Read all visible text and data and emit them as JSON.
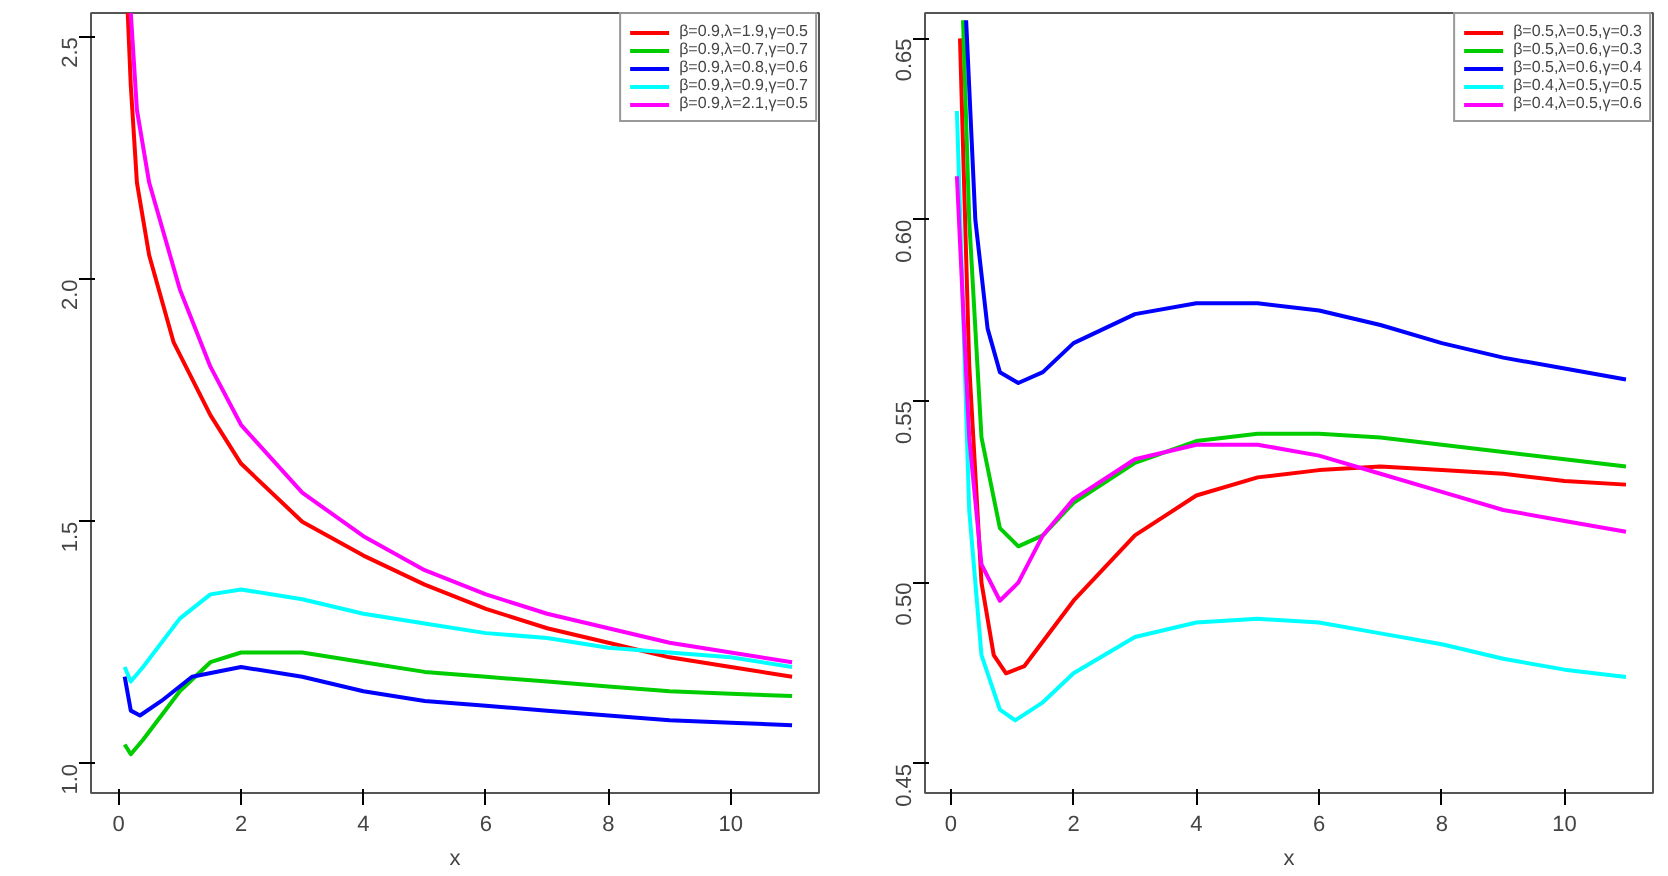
{
  "chart_data": [
    {
      "type": "line",
      "xlabel": "x",
      "xlim": [
        -0.45,
        11.44
      ],
      "ylim": [
        0.94,
        2.55
      ],
      "xticks": [
        0,
        2,
        4,
        6,
        8,
        10
      ],
      "yticks": [
        {
          "value": 1.0,
          "label": "1.0"
        },
        1.5,
        {
          "value": 2.0,
          "label": "2.0"
        },
        2.5
      ],
      "grid": false,
      "legend": "top right",
      "line_style": "solid",
      "marker": "none",
      "series": [
        {
          "name": "β=0.9,λ=1.9,γ=0.5",
          "color": "#ff0000",
          "x": [
            0.15,
            0.2,
            0.3,
            0.5,
            0.9,
            1.5,
            2,
            3,
            4,
            5,
            6,
            7,
            8,
            9,
            10,
            11
          ],
          "values": [
            2.55,
            2.4,
            2.2,
            2.05,
            1.87,
            1.72,
            1.62,
            1.5,
            1.43,
            1.37,
            1.32,
            1.28,
            1.25,
            1.22,
            1.2,
            1.18
          ]
        },
        {
          "name": "β=0.9,λ=0.7,γ=0.7",
          "color": "#00cd00",
          "x": [
            0.1,
            0.2,
            0.4,
            1,
            1.5,
            2,
            3,
            4,
            5,
            6,
            7,
            8,
            9,
            10,
            11
          ],
          "values": [
            1.04,
            1.02,
            1.05,
            1.15,
            1.21,
            1.23,
            1.23,
            1.21,
            1.19,
            1.18,
            1.17,
            1.16,
            1.15,
            1.145,
            1.14
          ]
        },
        {
          "name": "β=0.9,λ=0.8,γ=0.6",
          "color": "#0000ff",
          "x": [
            0.1,
            0.2,
            0.35,
            0.7,
            1.2,
            2,
            3,
            4,
            5,
            6,
            7,
            8,
            9,
            10,
            11
          ],
          "values": [
            1.18,
            1.11,
            1.1,
            1.13,
            1.18,
            1.2,
            1.18,
            1.15,
            1.13,
            1.12,
            1.11,
            1.1,
            1.09,
            1.085,
            1.08
          ]
        },
        {
          "name": "β=0.9,λ=0.9,γ=0.7",
          "color": "#00ffff",
          "x": [
            0.1,
            0.2,
            0.4,
            1,
            1.5,
            2,
            3,
            4,
            5,
            6,
            7,
            8,
            9,
            10,
            11
          ],
          "values": [
            1.2,
            1.17,
            1.2,
            1.3,
            1.35,
            1.36,
            1.34,
            1.31,
            1.29,
            1.27,
            1.26,
            1.24,
            1.23,
            1.22,
            1.2
          ]
        },
        {
          "name": "β=0.9,λ=2.1,γ=0.5",
          "color": "#ff00ff",
          "x": [
            0.2,
            0.3,
            0.5,
            1,
            1.5,
            2,
            3,
            4,
            5,
            6,
            7,
            8,
            9,
            10,
            11
          ],
          "values": [
            2.55,
            2.35,
            2.2,
            1.98,
            1.82,
            1.7,
            1.56,
            1.47,
            1.4,
            1.35,
            1.31,
            1.28,
            1.25,
            1.23,
            1.21
          ]
        }
      ]
    },
    {
      "type": "line",
      "xlabel": "x",
      "xlim": [
        -0.42,
        11.44
      ],
      "ylim": [
        0.442,
        0.657
      ],
      "xticks": [
        0,
        2,
        4,
        6,
        8,
        10
      ],
      "yticks": [
        0.45,
        {
          "value": 0.5,
          "label": "0.50"
        },
        0.55,
        {
          "value": 0.6,
          "label": "0.60"
        },
        0.65
      ],
      "grid": false,
      "legend": "top right",
      "line_style": "solid",
      "marker": "none",
      "series": [
        {
          "name": "β=0.5,λ=0.5,γ=0.3",
          "color": "#ff0000",
          "x": [
            0.15,
            0.3,
            0.5,
            0.7,
            0.9,
            1.2,
            2,
            3,
            4,
            5,
            6,
            7,
            8,
            9,
            10,
            11
          ],
          "values": [
            0.65,
            0.56,
            0.5,
            0.48,
            0.475,
            0.477,
            0.495,
            0.513,
            0.524,
            0.529,
            0.531,
            0.532,
            0.531,
            0.53,
            0.528,
            0.527
          ]
        },
        {
          "name": "β=0.5,λ=0.6,γ=0.3",
          "color": "#00cd00",
          "x": [
            0.2,
            0.3,
            0.5,
            0.8,
            1.1,
            1.5,
            2,
            3,
            4,
            5,
            6,
            7,
            8,
            9,
            10,
            11
          ],
          "values": [
            0.655,
            0.6,
            0.54,
            0.515,
            0.51,
            0.513,
            0.522,
            0.533,
            0.539,
            0.541,
            0.541,
            0.54,
            0.538,
            0.536,
            0.534,
            0.532
          ]
        },
        {
          "name": "β=0.5,λ=0.6,γ=0.4",
          "color": "#0000ff",
          "x": [
            0.25,
            0.4,
            0.6,
            0.8,
            1.1,
            1.5,
            2,
            3,
            4,
            5,
            6,
            7,
            8,
            9,
            10,
            11
          ],
          "values": [
            0.655,
            0.6,
            0.57,
            0.558,
            0.555,
            0.558,
            0.566,
            0.574,
            0.577,
            0.577,
            0.575,
            0.571,
            0.566,
            0.562,
            0.559,
            0.556
          ]
        },
        {
          "name": "β=0.4,λ=0.5,γ=0.5",
          "color": "#00ffff",
          "x": [
            0.1,
            0.3,
            0.5,
            0.8,
            1.05,
            1.5,
            2,
            3,
            4,
            5,
            6,
            7,
            8,
            9,
            10,
            11
          ],
          "values": [
            0.63,
            0.52,
            0.48,
            0.465,
            0.462,
            0.467,
            0.475,
            0.485,
            0.489,
            0.49,
            0.489,
            0.486,
            0.483,
            0.479,
            0.476,
            0.474
          ]
        },
        {
          "name": "β=0.4,λ=0.5,γ=0.6",
          "color": "#ff00ff",
          "x": [
            0.1,
            0.3,
            0.5,
            0.8,
            1.1,
            1.5,
            2,
            3,
            4,
            5,
            6,
            7,
            8,
            9,
            10,
            11
          ],
          "values": [
            0.612,
            0.54,
            0.505,
            0.495,
            0.5,
            0.513,
            0.523,
            0.534,
            0.538,
            0.538,
            0.535,
            0.53,
            0.525,
            0.52,
            0.517,
            0.514
          ]
        }
      ]
    }
  ]
}
